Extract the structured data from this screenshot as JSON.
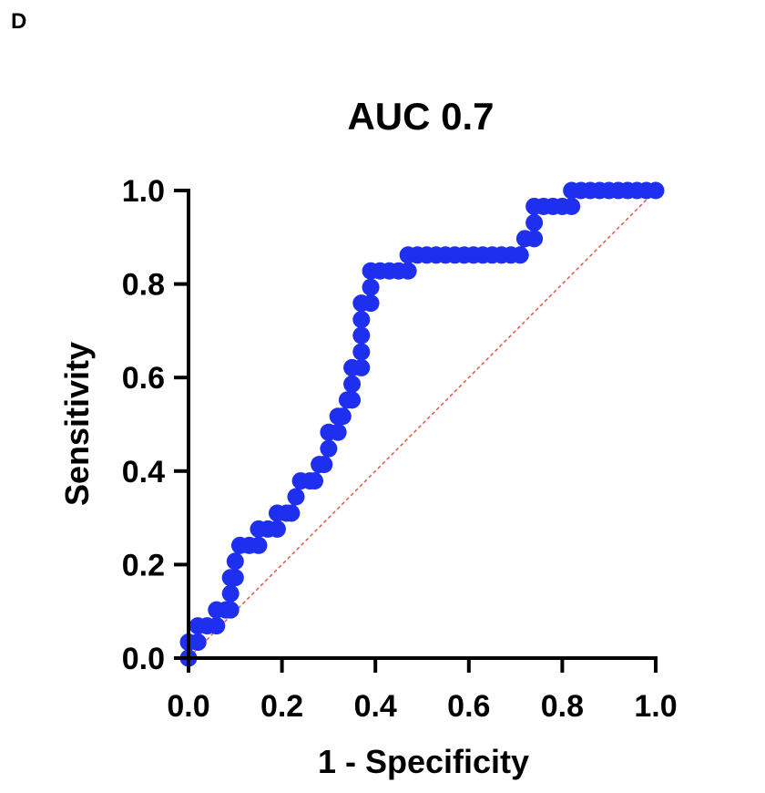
{
  "panel_label": "D",
  "chart_data": {
    "type": "line",
    "title": "AUC 0.7",
    "xlabel": "1 - Specificity",
    "ylabel": "Sensitivity",
    "xlim": [
      0,
      1
    ],
    "ylim": [
      0,
      1
    ],
    "x_ticks": [
      "0.0",
      "0.2",
      "0.4",
      "0.6",
      "0.8",
      "1.0"
    ],
    "y_ticks": [
      "0.0",
      "0.2",
      "0.4",
      "0.6",
      "0.8",
      "1.0"
    ],
    "x_tick_values": [
      0,
      0.2,
      0.4,
      0.6,
      0.8,
      1.0
    ],
    "y_tick_values": [
      0,
      0.2,
      0.4,
      0.6,
      0.8,
      1.0
    ],
    "series": [
      {
        "name": "ROC",
        "color": "#1f2ff0",
        "points": [
          [
            0.0,
            0.0
          ],
          [
            0.0,
            0.034
          ],
          [
            0.02,
            0.034
          ],
          [
            0.02,
            0.069
          ],
          [
            0.04,
            0.069
          ],
          [
            0.06,
            0.069
          ],
          [
            0.06,
            0.103
          ],
          [
            0.08,
            0.103
          ],
          [
            0.09,
            0.103
          ],
          [
            0.09,
            0.138
          ],
          [
            0.09,
            0.172
          ],
          [
            0.1,
            0.172
          ],
          [
            0.1,
            0.207
          ],
          [
            0.11,
            0.241
          ],
          [
            0.13,
            0.241
          ],
          [
            0.15,
            0.241
          ],
          [
            0.15,
            0.276
          ],
          [
            0.17,
            0.276
          ],
          [
            0.19,
            0.276
          ],
          [
            0.19,
            0.31
          ],
          [
            0.21,
            0.31
          ],
          [
            0.22,
            0.31
          ],
          [
            0.23,
            0.345
          ],
          [
            0.24,
            0.379
          ],
          [
            0.26,
            0.379
          ],
          [
            0.27,
            0.379
          ],
          [
            0.28,
            0.414
          ],
          [
            0.29,
            0.414
          ],
          [
            0.3,
            0.448
          ],
          [
            0.3,
            0.483
          ],
          [
            0.32,
            0.483
          ],
          [
            0.32,
            0.517
          ],
          [
            0.33,
            0.517
          ],
          [
            0.34,
            0.552
          ],
          [
            0.35,
            0.552
          ],
          [
            0.35,
            0.586
          ],
          [
            0.35,
            0.621
          ],
          [
            0.37,
            0.621
          ],
          [
            0.37,
            0.655
          ],
          [
            0.37,
            0.69
          ],
          [
            0.37,
            0.724
          ],
          [
            0.37,
            0.759
          ],
          [
            0.39,
            0.759
          ],
          [
            0.39,
            0.793
          ],
          [
            0.39,
            0.828
          ],
          [
            0.41,
            0.828
          ],
          [
            0.43,
            0.828
          ],
          [
            0.45,
            0.828
          ],
          [
            0.47,
            0.828
          ],
          [
            0.47,
            0.862
          ],
          [
            0.49,
            0.862
          ],
          [
            0.51,
            0.862
          ],
          [
            0.53,
            0.862
          ],
          [
            0.55,
            0.862
          ],
          [
            0.57,
            0.862
          ],
          [
            0.59,
            0.862
          ],
          [
            0.61,
            0.862
          ],
          [
            0.63,
            0.862
          ],
          [
            0.65,
            0.862
          ],
          [
            0.67,
            0.862
          ],
          [
            0.69,
            0.862
          ],
          [
            0.71,
            0.862
          ],
          [
            0.72,
            0.897
          ],
          [
            0.74,
            0.897
          ],
          [
            0.74,
            0.931
          ],
          [
            0.74,
            0.966
          ],
          [
            0.76,
            0.966
          ],
          [
            0.78,
            0.966
          ],
          [
            0.8,
            0.966
          ],
          [
            0.82,
            0.966
          ],
          [
            0.82,
            1.0
          ],
          [
            0.84,
            1.0
          ],
          [
            0.86,
            1.0
          ],
          [
            0.88,
            1.0
          ],
          [
            0.9,
            1.0
          ],
          [
            0.92,
            1.0
          ],
          [
            0.94,
            1.0
          ],
          [
            0.96,
            1.0
          ],
          [
            0.98,
            1.0
          ],
          [
            1.0,
            1.0
          ]
        ]
      },
      {
        "name": "Reference",
        "color": "#e8583a",
        "style": "dashed",
        "points": [
          [
            0,
            0
          ],
          [
            1,
            1
          ]
        ]
      }
    ]
  }
}
